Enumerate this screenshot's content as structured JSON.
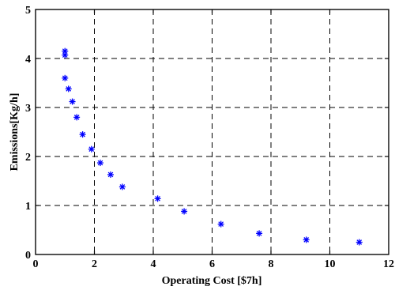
{
  "chart_data": {
    "type": "scatter",
    "title": "",
    "xlabel": "Operating Cost [$7h]",
    "ylabel": "Emissions[Kg/h]",
    "xlim": [
      0,
      12
    ],
    "ylim": [
      0,
      5
    ],
    "x_ticks": [
      "0",
      "2",
      "4",
      "6",
      "8",
      "10",
      "12"
    ],
    "y_ticks": [
      "0",
      "1",
      "2",
      "3",
      "4",
      "5"
    ],
    "grid": true,
    "marker": "asterisk",
    "marker_color": "#0000ff",
    "series": [
      {
        "x": [
          1.0,
          1.0,
          1.0,
          1.12,
          1.25,
          1.4,
          1.6,
          1.9,
          2.2,
          2.55,
          2.95,
          4.15,
          5.05,
          6.3,
          7.6,
          9.2,
          11.0
        ],
        "y": [
          4.15,
          4.07,
          3.6,
          3.38,
          3.12,
          2.8,
          2.45,
          2.15,
          1.87,
          1.63,
          1.38,
          1.14,
          0.88,
          0.62,
          0.43,
          0.3,
          0.25
        ]
      }
    ]
  }
}
